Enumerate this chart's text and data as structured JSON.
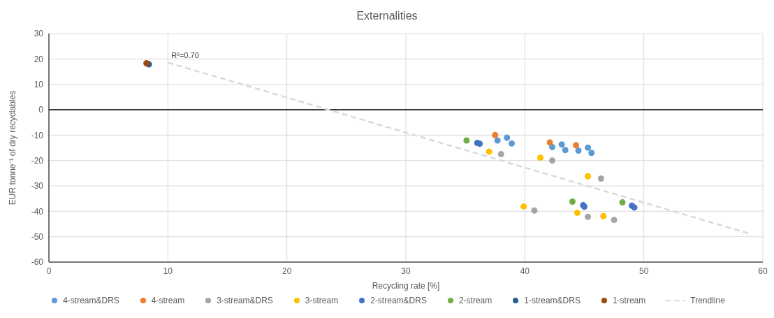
{
  "chart_data": {
    "type": "scatter",
    "title": "Externalities",
    "xlabel": "Recycling rate [%]",
    "ylabel": "EUR tonne⁻¹ of dry recyclables",
    "xlim": [
      0,
      60
    ],
    "xticks": [
      0,
      10,
      20,
      30,
      40,
      50,
      60
    ],
    "ylim": [
      -60,
      30
    ],
    "yticks": [
      -60,
      -50,
      -40,
      -30,
      -20,
      -10,
      0,
      10,
      20,
      30
    ],
    "grid": true,
    "legend": "bottom",
    "marker": "circle",
    "ref_lines": [
      {
        "axis": "y",
        "value": 0,
        "color": "#000000"
      }
    ],
    "annotations": [
      {
        "text": "R²=0.70",
        "x": 10,
        "y": 18.6
      }
    ],
    "series": [
      {
        "name": "4-stream&DRS",
        "color": "#5b9bd5",
        "x": [
          37.7,
          38.5,
          38.9,
          42.3,
          43.1,
          43.4,
          44.5,
          45.3,
          45.6
        ],
        "values": [
          -12.1,
          -11.0,
          -13.3,
          -14.7,
          -13.7,
          -15.9,
          -16.1,
          -14.9,
          -17.0
        ]
      },
      {
        "name": "4-stream",
        "color": "#ed7d31",
        "x": [
          37.5,
          42.1,
          44.3
        ],
        "values": [
          -10.0,
          -12.9,
          -14.0
        ]
      },
      {
        "name": "3-stream&DRS",
        "color": "#a5a5a5",
        "x": [
          38.0,
          42.3,
          46.4,
          40.8,
          45.3,
          47.5
        ],
        "values": [
          -17.5,
          -20.0,
          -27.1,
          -39.7,
          -42.2,
          -43.4
        ]
      },
      {
        "name": "3-stream",
        "color": "#ffc000",
        "x": [
          37.0,
          41.3,
          45.3,
          39.9,
          44.4,
          46.6
        ],
        "values": [
          -16.5,
          -18.9,
          -26.2,
          -38.1,
          -40.6,
          -41.9
        ]
      },
      {
        "name": "2-stream&DRS",
        "color": "#4472c4",
        "x": [
          36.0,
          36.2,
          44.9,
          45.0,
          49.0,
          49.2
        ],
        "values": [
          -13.1,
          -13.4,
          -37.6,
          -38.2,
          -37.8,
          -38.5
        ]
      },
      {
        "name": "2-stream",
        "color": "#70ad47",
        "x": [
          35.1,
          44.0,
          48.2
        ],
        "values": [
          -12.1,
          -36.2,
          -36.5
        ]
      },
      {
        "name": "1-stream&DRS",
        "color": "#255e91",
        "x": [
          8.4
        ],
        "values": [
          17.9
        ]
      },
      {
        "name": "1-stream",
        "color": "#9e480e",
        "x": [
          8.2
        ],
        "values": [
          18.3
        ]
      },
      {
        "name": "Trendline",
        "type": "line",
        "color": "#d9d9d9",
        "line_style": "dashed",
        "marker": "none",
        "x": [
          10,
          58.8
        ],
        "values": [
          18.6,
          -48.7
        ]
      }
    ]
  }
}
